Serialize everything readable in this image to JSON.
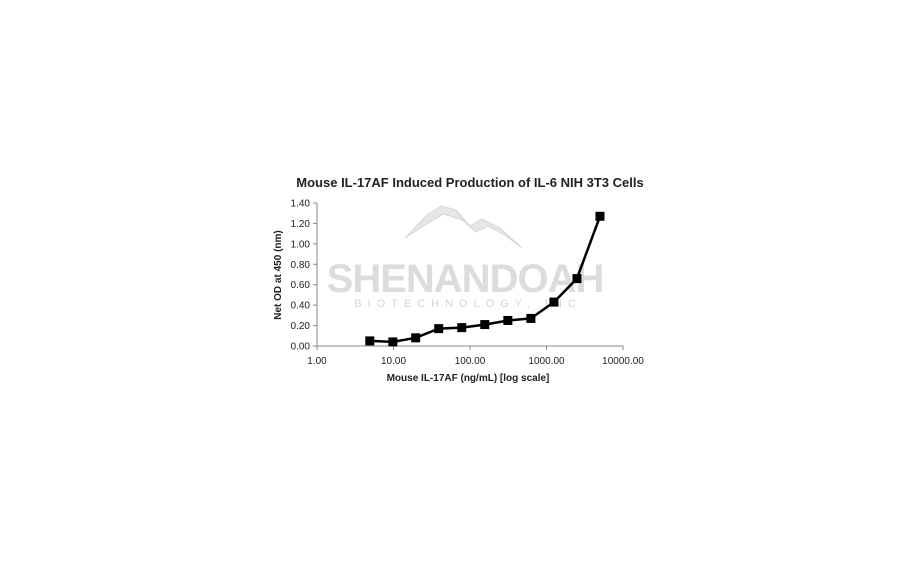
{
  "chart_data": {
    "type": "line",
    "title": "Mouse IL-17AF Induced Production of IL-6 NIH 3T3 Cells",
    "xlabel": "Mouse IL-17AF (ng/mL) [log scale]",
    "ylabel": "Net OD at 450 (nm)",
    "x_scale": "log",
    "xlim": [
      1,
      10000
    ],
    "ylim": [
      0,
      1.4
    ],
    "x_ticks": [
      "1.00",
      "10.00",
      "100.00",
      "1000.00",
      "10000.00"
    ],
    "y_ticks": [
      "0.00",
      "0.20",
      "0.40",
      "0.60",
      "0.80",
      "1.00",
      "1.20",
      "1.40"
    ],
    "grid": false,
    "marker": "square",
    "series": [
      {
        "x": [
          4.9,
          9.8,
          19.5,
          39,
          78,
          156,
          312.5,
          625,
          1250,
          2500,
          5000
        ],
        "y": [
          0.05,
          0.04,
          0.08,
          0.17,
          0.18,
          0.21,
          0.25,
          0.27,
          0.43,
          0.66,
          1.27
        ],
        "color": "#000000"
      }
    ]
  },
  "watermark": {
    "line1": "SHENANDOAH",
    "line2": "BIOTECHNOLOGY, INC",
    "color": "#dcdcdc"
  }
}
